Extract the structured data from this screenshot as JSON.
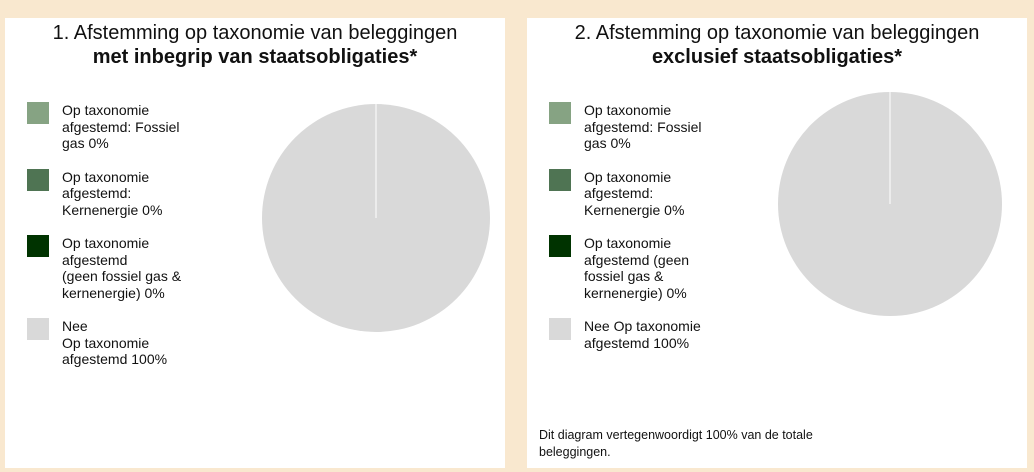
{
  "chart_data": [
    {
      "type": "pie",
      "title": "1. Afstemming op taxonomie van beleggingen",
      "subtitle": "met inbegrip van staatsobligaties*",
      "categories": [
        "Op taxonomie afgestemd: Fossiel gas 0%",
        "Op taxonomie afgestemd: Kernenergie 0%",
        "Op taxonomie afgestemd\n(geen fossiel gas & kernenergie) 0%",
        "Nee\nOp taxonomie afgestemd 100%"
      ],
      "values": [
        0,
        0,
        0,
        100
      ],
      "colors": [
        "#86a383",
        "#4f7453",
        "#003300",
        "#d9d9d9"
      ]
    },
    {
      "type": "pie",
      "title": "2. Afstemming op taxonomie van beleggingen",
      "subtitle": "exclusief staatsobligaties*",
      "categories": [
        "Op taxonomie afgestemd: Fossiel gas 0%",
        "Op taxonomie afgestemd: Kernenergie 0%",
        "Op taxonomie afgestemd (geen fossiel gas & kernenergie) 0%",
        "Nee Op taxonomie afgestemd 100%"
      ],
      "values": [
        0,
        0,
        0,
        100
      ],
      "colors": [
        "#86a383",
        "#4f7453",
        "#003300",
        "#d9d9d9"
      ],
      "note": "Dit diagram vertegenwoordigt 100% van de totale beleggingen."
    }
  ]
}
